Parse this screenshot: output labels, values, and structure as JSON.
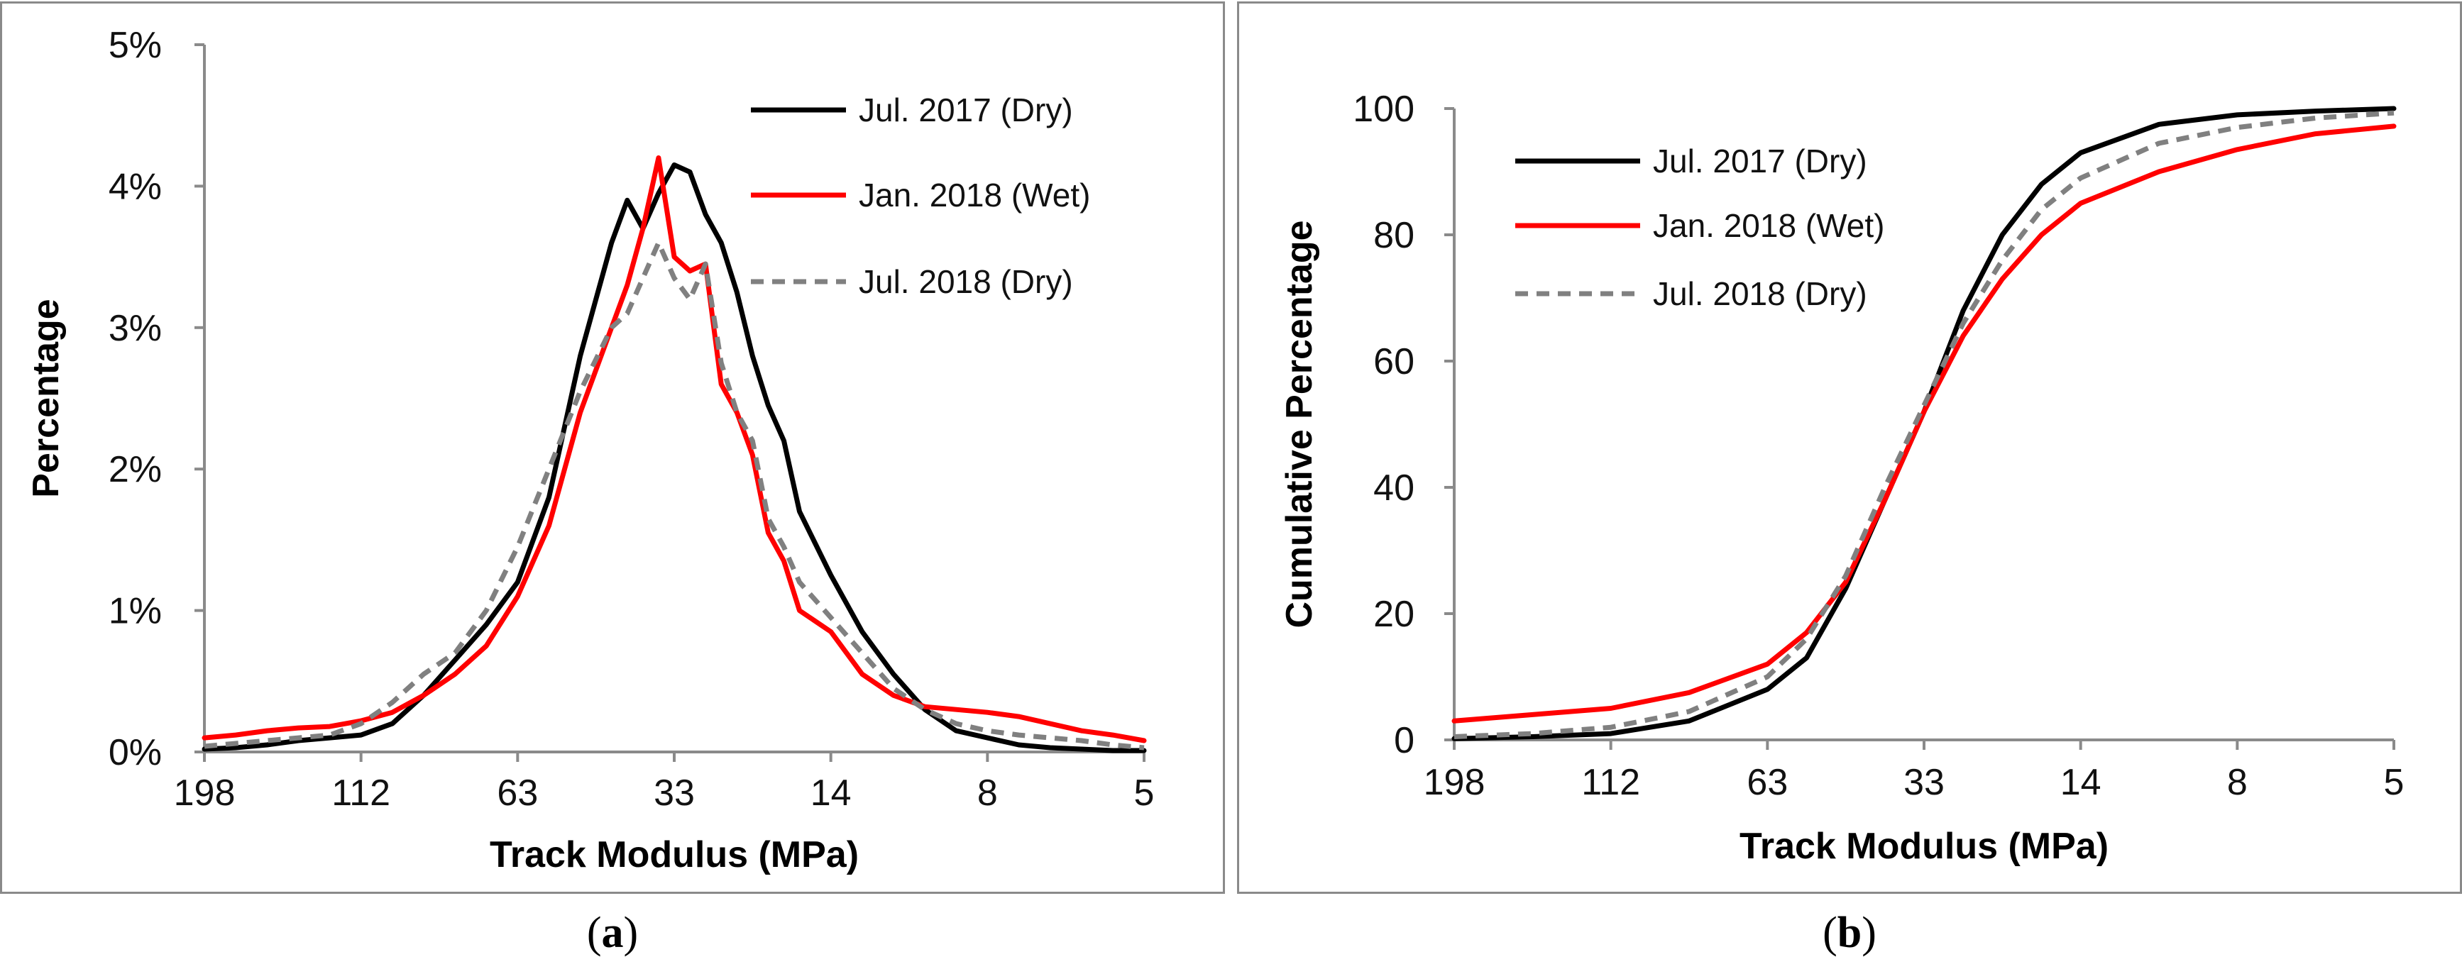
{
  "chart_data": [
    {
      "panel": "a",
      "caption_letter": "a",
      "type": "line",
      "xlabel": "Track Modulus (MPa)",
      "ylabel": "Percentage",
      "x_tick_labels": [
        "198",
        "112",
        "63",
        "33",
        "14",
        "8",
        "5"
      ],
      "y_tick_labels": [
        "0%",
        "1%",
        "2%",
        "3%",
        "4%",
        "5%"
      ],
      "ylim": [
        0,
        5
      ],
      "x_position_range": [
        0,
        6
      ],
      "legend_position": "top-right",
      "series": [
        {
          "name": "Jul. 2017 (Dry)",
          "color": "#000000",
          "style": "solid",
          "x": [
            0,
            0.2,
            0.4,
            0.6,
            0.8,
            1.0,
            1.2,
            1.4,
            1.6,
            1.8,
            2.0,
            2.2,
            2.4,
            2.6,
            2.7,
            2.8,
            2.9,
            3.0,
            3.1,
            3.2,
            3.3,
            3.4,
            3.5,
            3.6,
            3.7,
            3.8,
            4.0,
            4.2,
            4.4,
            4.6,
            4.8,
            5.0,
            5.2,
            5.4,
            5.6,
            5.8,
            6.0
          ],
          "y": [
            0.02,
            0.03,
            0.05,
            0.08,
            0.1,
            0.12,
            0.2,
            0.4,
            0.65,
            0.9,
            1.2,
            1.8,
            2.8,
            3.6,
            3.9,
            3.7,
            3.95,
            4.15,
            4.1,
            3.8,
            3.6,
            3.25,
            2.8,
            2.45,
            2.2,
            1.7,
            1.25,
            0.85,
            0.55,
            0.3,
            0.15,
            0.1,
            0.05,
            0.03,
            0.02,
            0.01,
            0.01
          ]
        },
        {
          "name": "Jan. 2018 (Wet)",
          "color": "#ff0000",
          "style": "solid",
          "x": [
            0,
            0.2,
            0.4,
            0.6,
            0.8,
            1.0,
            1.2,
            1.4,
            1.6,
            1.8,
            2.0,
            2.2,
            2.4,
            2.6,
            2.7,
            2.8,
            2.9,
            3.0,
            3.1,
            3.2,
            3.3,
            3.4,
            3.5,
            3.6,
            3.7,
            3.8,
            4.0,
            4.2,
            4.4,
            4.6,
            4.8,
            5.0,
            5.2,
            5.4,
            5.6,
            5.8,
            6.0
          ],
          "y": [
            0.1,
            0.12,
            0.15,
            0.17,
            0.18,
            0.22,
            0.28,
            0.4,
            0.55,
            0.75,
            1.1,
            1.6,
            2.4,
            3.0,
            3.3,
            3.7,
            4.2,
            3.5,
            3.4,
            3.45,
            2.6,
            2.4,
            2.1,
            1.55,
            1.35,
            1.0,
            0.85,
            0.55,
            0.4,
            0.32,
            0.3,
            0.28,
            0.25,
            0.2,
            0.15,
            0.12,
            0.08
          ]
        },
        {
          "name": "Jul. 2018 (Dry)",
          "color": "#808080",
          "style": "dashed",
          "x": [
            0,
            0.2,
            0.4,
            0.6,
            0.8,
            1.0,
            1.2,
            1.4,
            1.6,
            1.8,
            2.0,
            2.2,
            2.4,
            2.6,
            2.7,
            2.8,
            2.9,
            3.0,
            3.1,
            3.2,
            3.3,
            3.4,
            3.5,
            3.6,
            3.7,
            3.8,
            4.0,
            4.2,
            4.4,
            4.6,
            4.8,
            5.0,
            5.2,
            5.4,
            5.6,
            5.8,
            6.0
          ],
          "y": [
            0.04,
            0.06,
            0.08,
            0.1,
            0.12,
            0.2,
            0.35,
            0.55,
            0.7,
            1.0,
            1.45,
            2.0,
            2.55,
            3.0,
            3.1,
            3.35,
            3.6,
            3.35,
            3.2,
            3.45,
            2.75,
            2.4,
            2.2,
            1.65,
            1.45,
            1.2,
            0.95,
            0.7,
            0.45,
            0.3,
            0.2,
            0.15,
            0.12,
            0.1,
            0.08,
            0.05,
            0.03
          ]
        }
      ]
    },
    {
      "panel": "b",
      "caption_letter": "b",
      "type": "line",
      "xlabel": "Track Modulus (MPa)",
      "ylabel": "Cumulative Percentage",
      "x_tick_labels": [
        "198",
        "112",
        "63",
        "33",
        "14",
        "8",
        "5"
      ],
      "y_tick_labels": [
        "0",
        "20",
        "40",
        "60",
        "80",
        "100"
      ],
      "ylim": [
        0,
        100
      ],
      "x_position_range": [
        0,
        6
      ],
      "legend_position": "top-left",
      "series": [
        {
          "name": "Jul. 2017 (Dry)",
          "color": "#000000",
          "style": "solid",
          "x": [
            0,
            0.5,
            1.0,
            1.5,
            2.0,
            2.25,
            2.5,
            2.75,
            3.0,
            3.25,
            3.5,
            3.75,
            4.0,
            4.5,
            5.0,
            5.5,
            6.0
          ],
          "y": [
            0.2,
            0.5,
            1.0,
            3.0,
            8.0,
            13.0,
            24.0,
            38.0,
            52.0,
            68.0,
            80.0,
            88.0,
            93.0,
            97.5,
            99.0,
            99.6,
            100.0
          ]
        },
        {
          "name": "Jan. 2018 (Wet)",
          "color": "#ff0000",
          "style": "solid",
          "x": [
            0,
            0.5,
            1.0,
            1.5,
            2.0,
            2.25,
            2.5,
            2.75,
            3.0,
            3.25,
            3.5,
            3.75,
            4.0,
            4.5,
            5.0,
            5.5,
            6.0
          ],
          "y": [
            3.0,
            4.0,
            5.0,
            7.5,
            12.0,
            17.0,
            25.0,
            38.0,
            52.0,
            64.0,
            73.0,
            80.0,
            85.0,
            90.0,
            93.5,
            96.0,
            97.2
          ]
        },
        {
          "name": "Jul. 2018 (Dry)",
          "color": "#808080",
          "style": "dashed",
          "x": [
            0,
            0.5,
            1.0,
            1.5,
            2.0,
            2.25,
            2.5,
            2.75,
            3.0,
            3.25,
            3.5,
            3.75,
            4.0,
            4.5,
            5.0,
            5.5,
            6.0
          ],
          "y": [
            0.5,
            1.0,
            2.0,
            4.5,
            10.0,
            16.0,
            26.0,
            40.0,
            53.0,
            66.0,
            76.0,
            84.0,
            89.0,
            94.5,
            97.0,
            98.5,
            99.3
          ]
        }
      ]
    }
  ]
}
